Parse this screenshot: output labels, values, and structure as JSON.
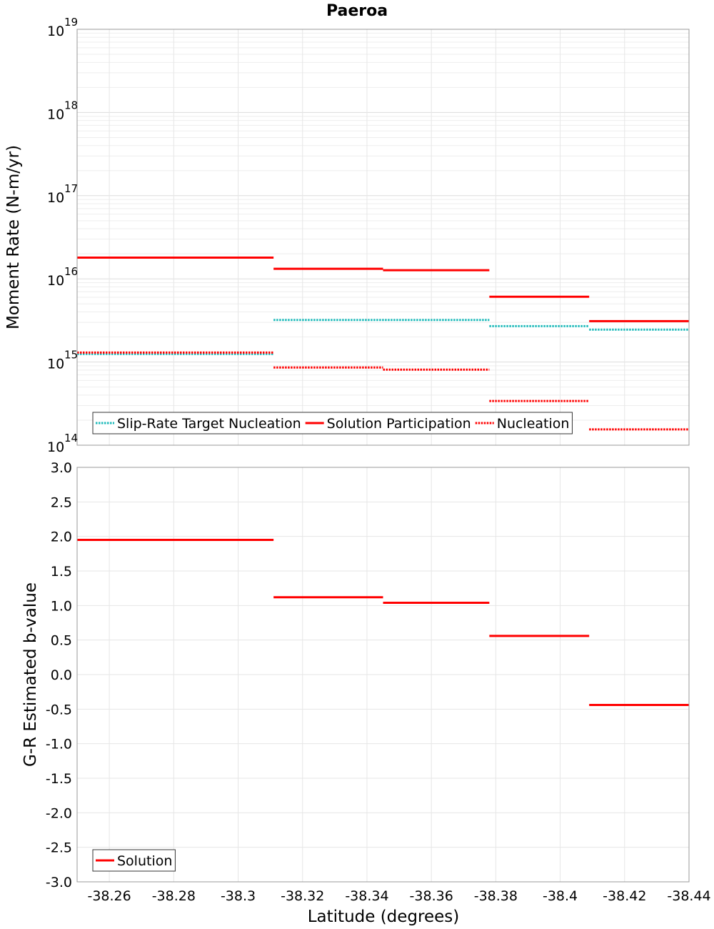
{
  "title": "Paeroa",
  "chart_data": [
    {
      "type": "line",
      "panel": "top",
      "yscale": "log",
      "ylabel": "Moment Rate (N-m/yr)",
      "ylim": [
        100000000000000.0,
        1e+19
      ],
      "yticks": [
        {
          "base": "10",
          "exp": "14",
          "value": 100000000000000.0
        },
        {
          "base": "10",
          "exp": "15",
          "value": 1000000000000000.0
        },
        {
          "base": "10",
          "exp": "16",
          "value": 1e+16
        },
        {
          "base": "10",
          "exp": "17",
          "value": 1e+17
        },
        {
          "base": "10",
          "exp": "18",
          "value": 1e+18
        },
        {
          "base": "10",
          "exp": "19",
          "value": 1e+19
        }
      ],
      "xlim": [
        -38.25,
        -38.44
      ],
      "legend": "bottom-left",
      "grid": true,
      "series": [
        {
          "name": "Slip-Rate Target Nucleation",
          "color": "#22bbbb",
          "style": "dotted",
          "segments": [
            {
              "x": [
                -38.25,
                -38.311
              ],
              "y": 1250000000000000.0
            },
            {
              "x": [
                -38.311,
                -38.378
              ],
              "y": 3200000000000000.0
            },
            {
              "x": [
                -38.378,
                -38.409
              ],
              "y": 2700000000000000.0
            },
            {
              "x": [
                -38.409,
                -38.44
              ],
              "y": 2450000000000000.0
            }
          ]
        },
        {
          "name": "Solution Participation",
          "color": "#ff0000",
          "style": "solid",
          "segments": [
            {
              "x": [
                -38.25,
                -38.311
              ],
              "y": 1.8e+16
            },
            {
              "x": [
                -38.311,
                -38.345
              ],
              "y": 1.32e+16
            },
            {
              "x": [
                -38.345,
                -38.378
              ],
              "y": 1.27e+16
            },
            {
              "x": [
                -38.378,
                -38.409
              ],
              "y": 6100000000000000.0
            },
            {
              "x": [
                -38.409,
                -38.44
              ],
              "y": 3100000000000000.0
            }
          ]
        },
        {
          "name": "Nucleation",
          "color": "#ff0000",
          "style": "dotted",
          "segments": [
            {
              "x": [
                -38.25,
                -38.311
              ],
              "y": 1300000000000000.0
            },
            {
              "x": [
                -38.311,
                -38.345
              ],
              "y": 860000000000000.0
            },
            {
              "x": [
                -38.345,
                -38.378
              ],
              "y": 810000000000000.0
            },
            {
              "x": [
                -38.378,
                -38.409
              ],
              "y": 340000000000000.0
            },
            {
              "x": [
                -38.409,
                -38.44
              ],
              "y": 155000000000000.0
            }
          ]
        }
      ]
    },
    {
      "type": "line",
      "panel": "bottom",
      "ylabel": "G-R Estimated b-value",
      "xlabel": "Latitude (degrees)",
      "ylim": [
        -3.0,
        3.0
      ],
      "yticks": [
        "-3.0",
        "-2.5",
        "-2.0",
        "-1.5",
        "-1.0",
        "-0.5",
        "0.0",
        "0.5",
        "1.0",
        "1.5",
        "2.0",
        "2.5",
        "3.0"
      ],
      "xlim": [
        -38.25,
        -38.44
      ],
      "xticks": [
        "-38.26",
        "-38.28",
        "-38.3",
        "-38.32",
        "-38.34",
        "-38.36",
        "-38.38",
        "-38.4",
        "-38.42",
        "-38.44"
      ],
      "legend": "bottom-left",
      "grid": true,
      "series": [
        {
          "name": "Solution",
          "color": "#ff0000",
          "style": "solid",
          "segments": [
            {
              "x": [
                -38.25,
                -38.311
              ],
              "y": 1.95
            },
            {
              "x": [
                -38.311,
                -38.345
              ],
              "y": 1.12
            },
            {
              "x": [
                -38.345,
                -38.378
              ],
              "y": 1.04
            },
            {
              "x": [
                -38.378,
                -38.409
              ],
              "y": 0.56
            },
            {
              "x": [
                -38.409,
                -38.44
              ],
              "y": -0.44
            }
          ]
        }
      ]
    }
  ]
}
